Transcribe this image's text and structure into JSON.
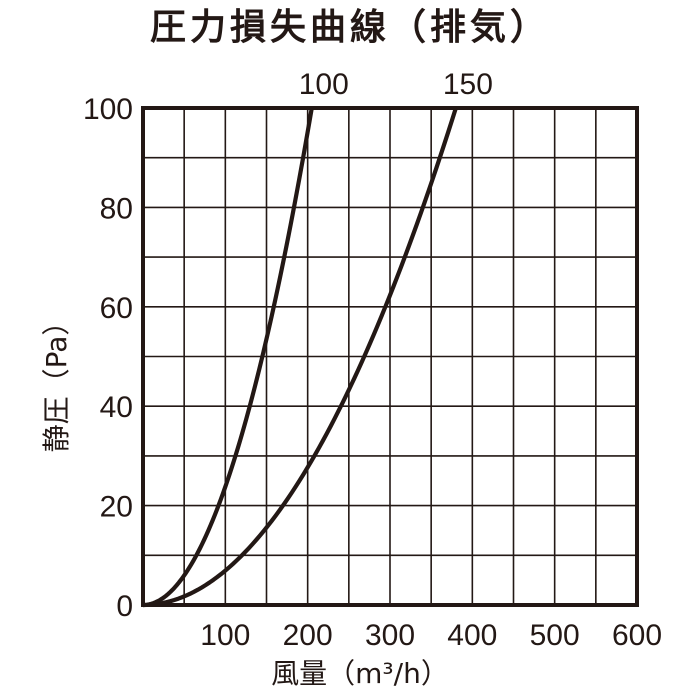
{
  "chart_data": {
    "type": "line",
    "title": "圧力損失曲線（排気）",
    "xlabel": "風量（m³/h）",
    "ylabel": "静圧（Pa）",
    "xlim": [
      0,
      600
    ],
    "ylim": [
      0,
      100
    ],
    "xticks": [
      "100",
      "200",
      "300",
      "400",
      "500",
      "600"
    ],
    "x_origin_label": "0",
    "yticks": [
      "0",
      "20",
      "40",
      "60",
      "80",
      "100"
    ],
    "grid": true,
    "colors": {
      "line": "#231815",
      "frame": "#231815",
      "grid": "#231815"
    },
    "series": [
      {
        "name": "100",
        "x": [
          0,
          25,
          50,
          75,
          100,
          125,
          150,
          175,
          200,
          205
        ],
        "y": [
          0,
          1.5,
          5.9,
          13.4,
          23.8,
          37.2,
          53.6,
          72.9,
          95.2,
          100
        ]
      },
      {
        "name": "150",
        "x": [
          0,
          50,
          100,
          150,
          200,
          250,
          300,
          350,
          380
        ],
        "y": [
          0,
          1.7,
          7,
          15.6,
          27.7,
          43.3,
          62.3,
          84.8,
          100
        ]
      }
    ]
  }
}
